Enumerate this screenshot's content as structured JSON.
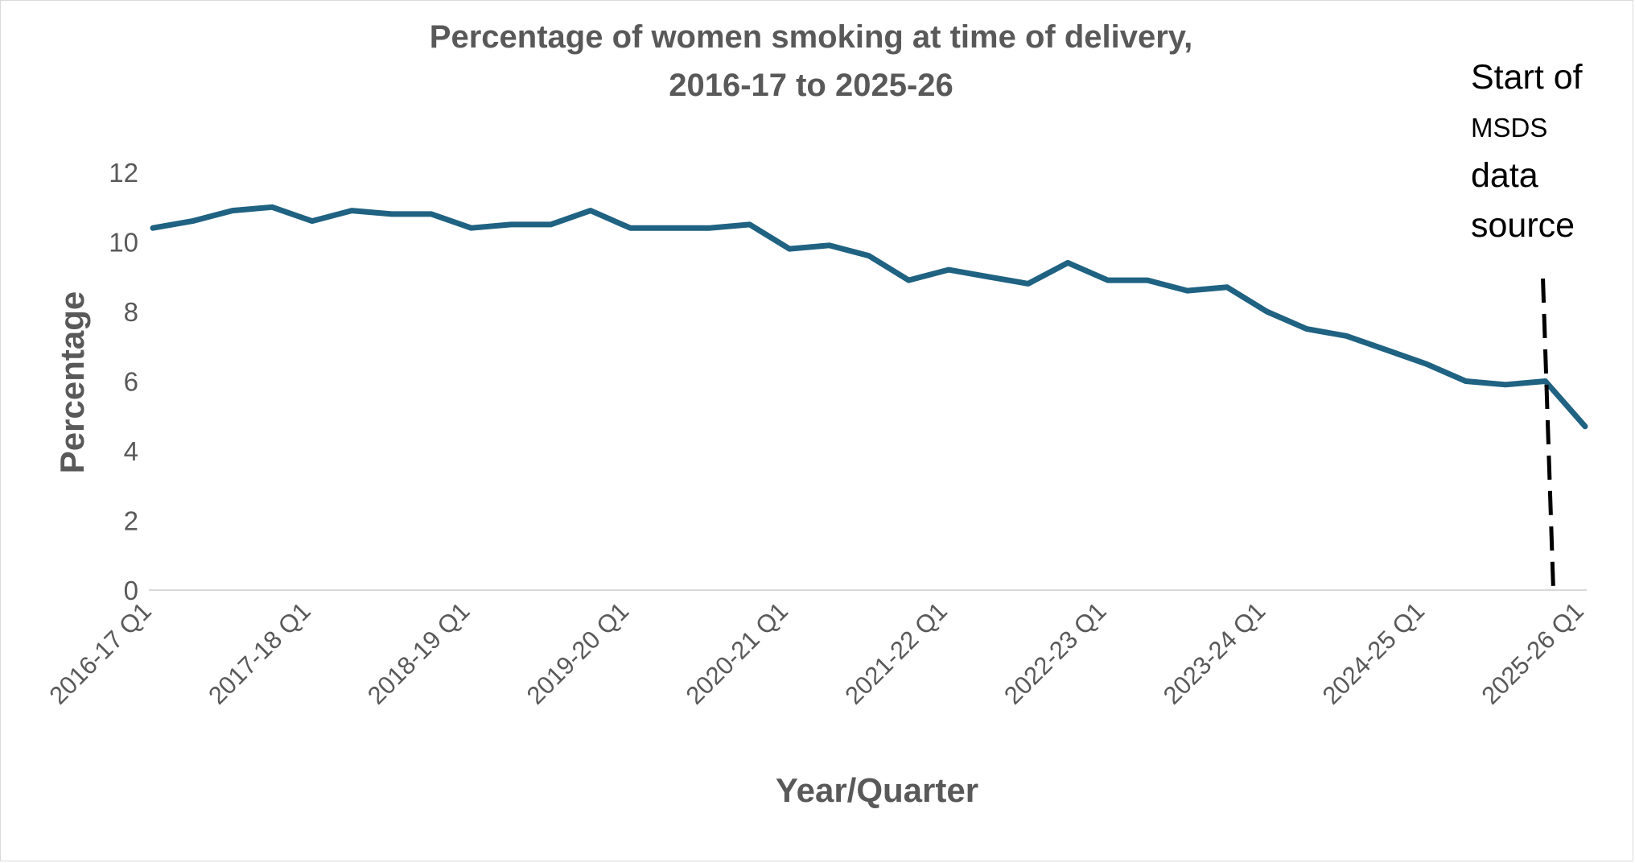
{
  "chart_data": {
    "type": "line",
    "title_line1": "Percentage of women smoking at time of delivery,",
    "title_line2": "2016-17 to 2025-26",
    "xlabel": "Year/Quarter",
    "ylabel": "Percentage",
    "ylim": [
      0,
      12
    ],
    "yticks": [
      0,
      2,
      4,
      6,
      8,
      10,
      12
    ],
    "grid": false,
    "legend": "none",
    "line_color": "#1F6282",
    "x": [
      "2016-17 Q1",
      "2016-17 Q2",
      "2016-17 Q3",
      "2016-17 Q4",
      "2017-18 Q1",
      "2017-18 Q2",
      "2017-18 Q3",
      "2017-18 Q4",
      "2018-19 Q1",
      "2018-19 Q2",
      "2018-19 Q3",
      "2018-19 Q4",
      "2019-20 Q1",
      "2019-20 Q2",
      "2019-20 Q3",
      "2019-20 Q4",
      "2020-21 Q1",
      "2020-21 Q2",
      "2020-21 Q3",
      "2020-21 Q4",
      "2021-22 Q1",
      "2021-22 Q2",
      "2021-22 Q3",
      "2021-22 Q4",
      "2022-23 Q1",
      "2022-23 Q2",
      "2022-23 Q3",
      "2022-23 Q4",
      "2023-24 Q1",
      "2023-24 Q2",
      "2023-24 Q3",
      "2023-24 Q4",
      "2024-25 Q1",
      "2024-25 Q2",
      "2024-25 Q3",
      "2024-25 Q4",
      "2025-26 Q1"
    ],
    "xticks_shown": [
      "2016-17 Q1",
      "2017-18 Q1",
      "2018-19 Q1",
      "2019-20 Q1",
      "2020-21 Q1",
      "2021-22 Q1",
      "2022-23 Q1",
      "2023-24 Q1",
      "2024-25 Q1",
      "2025-26 Q1"
    ],
    "values": [
      10.4,
      10.6,
      10.9,
      11.0,
      10.6,
      10.9,
      10.8,
      10.8,
      10.4,
      10.5,
      10.5,
      10.9,
      10.4,
      10.4,
      10.4,
      10.5,
      9.8,
      9.9,
      9.6,
      8.9,
      9.2,
      9.0,
      8.8,
      9.4,
      8.9,
      8.9,
      8.6,
      8.7,
      8.0,
      7.5,
      7.3,
      6.9,
      6.5,
      6.0,
      5.9,
      6.0,
      4.7
    ],
    "annotation": {
      "lines": [
        "Start of",
        "MSDS",
        "data",
        "source"
      ],
      "at_x": "2024-25 Q4",
      "style": "dashed vertical line"
    }
  }
}
